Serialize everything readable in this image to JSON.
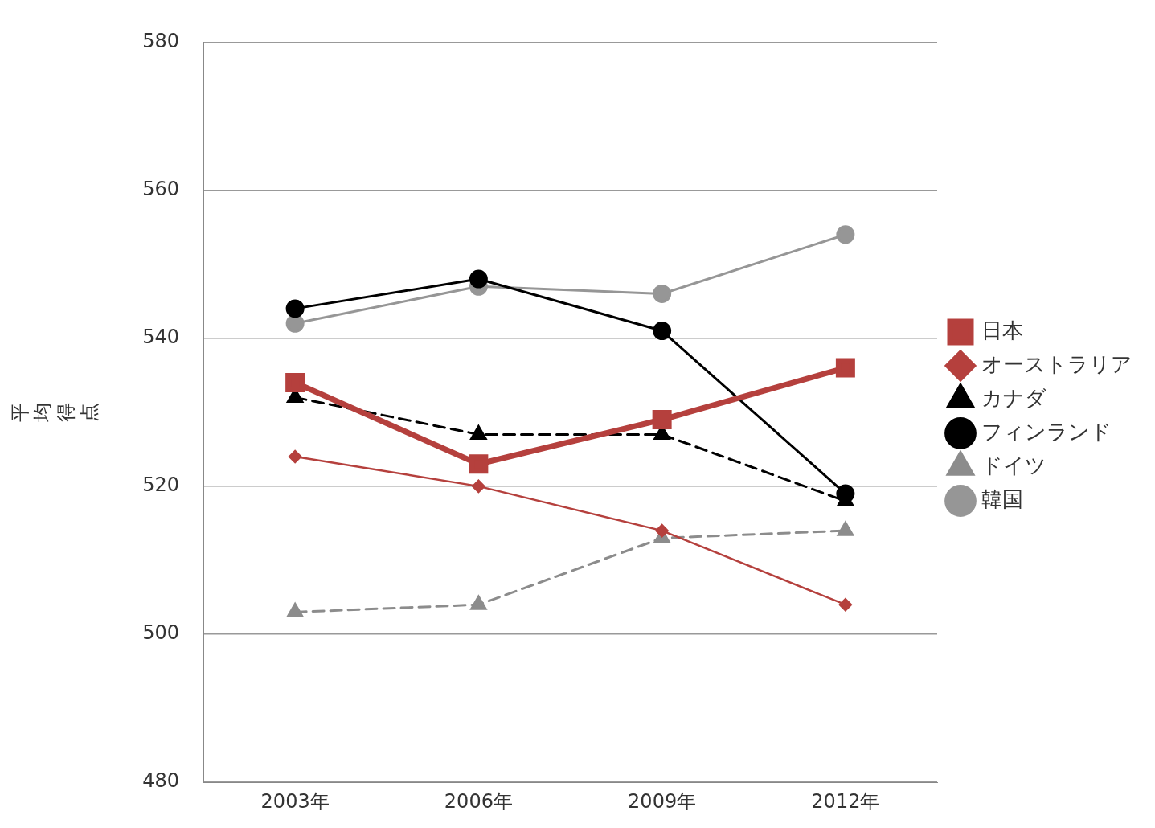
{
  "chart_data": {
    "type": "line",
    "ylabel": "平均得点",
    "categories": [
      "2003年",
      "2006年",
      "2009年",
      "2012年"
    ],
    "ylim": [
      480,
      580
    ],
    "yticks": [
      480,
      500,
      520,
      540,
      560,
      580
    ],
    "grid": "y",
    "legend": "right",
    "series": [
      {
        "name": "日本",
        "color": "#b5403d",
        "marker": "square",
        "line_style": "solid",
        "values": [
          534,
          523,
          529,
          536
        ]
      },
      {
        "name": "オーストラリア",
        "color": "#b5403d",
        "marker": "diamond",
        "line_style": "solid",
        "values": [
          524,
          520,
          514,
          504
        ]
      },
      {
        "name": "カナダ",
        "color": "#000000",
        "marker": "triangle",
        "line_style": "dashed",
        "values": [
          532,
          527,
          527,
          518
        ]
      },
      {
        "name": "フィンランド",
        "color": "#000000",
        "marker": "circle",
        "line_style": "solid",
        "values": [
          544,
          548,
          541,
          519
        ]
      },
      {
        "name": "ドイツ",
        "color": "#8c8c8c",
        "marker": "triangle",
        "line_style": "dashed",
        "values": [
          503,
          504,
          513,
          514
        ]
      },
      {
        "name": "韓国",
        "color": "#969696",
        "marker": "circle",
        "line_style": "solid",
        "values": [
          542,
          547,
          546,
          554
        ]
      }
    ]
  }
}
